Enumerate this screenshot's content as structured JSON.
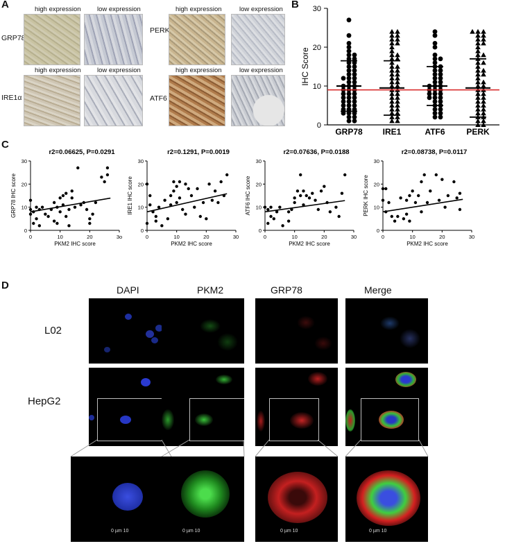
{
  "panelA": {
    "letter": "A",
    "high_label": "high expression",
    "low_label": "low expression",
    "rows_left": [
      "GRP78",
      "IRE1α"
    ],
    "rows_right": [
      "PERK",
      "ATF6"
    ]
  },
  "panelB": {
    "letter": "B",
    "ylabel": "IHC Score",
    "categories": [
      "GRP78",
      "IRE1",
      "ATF6",
      "PERK"
    ],
    "yticks": [
      "0",
      "10",
      "20",
      "30"
    ],
    "reference_line": 9,
    "colors": {
      "reference": "#d92b2b",
      "points": "#000000"
    }
  },
  "panelC": {
    "letter": "C",
    "xlabel": "PKM2 IHC score",
    "plots": [
      {
        "title": "r2=0.06625, P=0.0291",
        "ylabel": "GRP78 IHC score",
        "xticks": [
          "0",
          "10",
          "20",
          "3o"
        ],
        "yticks": [
          "0",
          "10",
          "20",
          "30"
        ]
      },
      {
        "title": "r2=0.1291, P=0.0019",
        "ylabel": "IRE1 IHC score",
        "xticks": [
          "0",
          "10",
          "20",
          "30"
        ],
        "yticks": [
          "0",
          "10",
          "20",
          "30"
        ]
      },
      {
        "title": "r2=0.07636, P=0.0188",
        "ylabel": "ATF6 IHC score",
        "xticks": [
          "0",
          "10",
          "20",
          "30"
        ],
        "yticks": [
          "0",
          "10",
          "20",
          "30"
        ]
      },
      {
        "title": "r2=0.08738, P=0.0117",
        "ylabel": "PERK IHC score",
        "xticks": [
          "0",
          "10",
          "20",
          "30"
        ],
        "yticks": [
          "0",
          "10",
          "20",
          "30"
        ]
      }
    ]
  },
  "panelD": {
    "letter": "D",
    "columns": [
      "DAPI",
      "PKM2",
      "GRP78",
      "Merge"
    ],
    "rows": [
      "L02",
      "HepG2"
    ],
    "scale_text": "0     µm     10",
    "channel_colors": {
      "DAPI": "#1c35c9",
      "PKM2": "#2fd12f",
      "GRP78": "#d42020"
    }
  },
  "chart_data": [
    {
      "type": "scatter",
      "title": "",
      "xlabel": "",
      "ylabel": "IHC Score",
      "ylim": [
        0,
        30
      ],
      "categories": [
        "GRP78",
        "IRE1",
        "ATF6",
        "PERK"
      ],
      "series": [
        {
          "name": "GRP78",
          "values": [
            27,
            23,
            21,
            20,
            19,
            18,
            18,
            17,
            17,
            16,
            16,
            15,
            15,
            14,
            14,
            13,
            13,
            12,
            12,
            12,
            11,
            11,
            10,
            10,
            10,
            9,
            9,
            9,
            8,
            8,
            8,
            7,
            7,
            7,
            6,
            6,
            6,
            5,
            5,
            5,
            4,
            4,
            4,
            3,
            3,
            3,
            2,
            2,
            1,
            1
          ],
          "mean": 10,
          "sd": 6.5
        },
        {
          "name": "IRE1",
          "values": [
            24,
            24,
            23,
            23,
            22,
            22,
            21,
            21,
            20,
            19,
            18,
            18,
            17,
            17,
            16,
            15,
            15,
            14,
            14,
            13,
            13,
            12,
            12,
            11,
            11,
            10,
            10,
            9,
            9,
            8,
            8,
            7,
            7,
            6,
            6,
            5,
            5,
            4,
            4,
            3,
            3,
            2,
            2,
            1,
            1
          ],
          "mean": 9.5,
          "sd": 7
        },
        {
          "name": "ATF6",
          "values": [
            24,
            23,
            21,
            20,
            18,
            17,
            17,
            16,
            15,
            15,
            14,
            14,
            13,
            13,
            12,
            12,
            11,
            11,
            10,
            10,
            10,
            9,
            9,
            9,
            8,
            8,
            8,
            7,
            7,
            7,
            6,
            6,
            5,
            5,
            4,
            4,
            3,
            3,
            2,
            2
          ],
          "mean": 10,
          "sd": 5
        },
        {
          "name": "PERK",
          "values": [
            24,
            24,
            24,
            23,
            23,
            22,
            22,
            21,
            21,
            20,
            19,
            18,
            18,
            17,
            16,
            16,
            15,
            14,
            14,
            13,
            13,
            12,
            11,
            11,
            10,
            10,
            9,
            9,
            8,
            8,
            7,
            7,
            6,
            6,
            5,
            5,
            4,
            4,
            3,
            3,
            2,
            2,
            1,
            1,
            0,
            0
          ],
          "mean": 9.5,
          "sd": 7.5
        }
      ],
      "reference_line": 9
    },
    {
      "type": "scatter",
      "title": "r2=0.06625, P=0.0291",
      "xlabel": "PKM2 IHC score",
      "ylabel": "GRP78 IHC score",
      "xlim": [
        0,
        30
      ],
      "ylim": [
        0,
        30
      ],
      "x": [
        0,
        0,
        0,
        1,
        1,
        2,
        2,
        3,
        3,
        4,
        5,
        6,
        7,
        8,
        8,
        9,
        9,
        10,
        10,
        11,
        11,
        12,
        12,
        13,
        13,
        14,
        14,
        15,
        16,
        17,
        18,
        19,
        20,
        20,
        21,
        22,
        24,
        25,
        26,
        26
      ],
      "y": [
        13,
        9,
        7,
        8,
        3,
        10,
        5,
        9,
        2,
        10,
        7,
        6,
        9,
        12,
        4,
        10,
        3,
        14,
        8,
        15,
        11,
        6,
        16,
        9,
        2,
        14,
        17,
        10,
        27,
        11,
        12,
        9,
        5,
        3,
        7,
        12,
        23,
        21,
        27,
        24
      ],
      "fit": {
        "slope": 0.22,
        "intercept": 8
      }
    },
    {
      "type": "scatter",
      "title": "r2=0.1291, P=0.0019",
      "xlabel": "PKM2 IHC score",
      "ylabel": "IRE1 IHC score",
      "xlim": [
        0,
        30
      ],
      "ylim": [
        0,
        30
      ],
      "x": [
        0,
        0,
        1,
        1,
        2,
        3,
        3,
        4,
        5,
        6,
        7,
        8,
        8,
        9,
        9,
        10,
        10,
        11,
        11,
        12,
        13,
        13,
        14,
        15,
        16,
        17,
        18,
        19,
        20,
        21,
        22,
        23,
        24,
        25,
        26,
        27
      ],
      "y": [
        3,
        20,
        15,
        11,
        8,
        4,
        6,
        10,
        2,
        13,
        5,
        15,
        11,
        17,
        21,
        19,
        12,
        21,
        14,
        9,
        7,
        20,
        18,
        15,
        10,
        18,
        6,
        12,
        5,
        20,
        13,
        17,
        12,
        21,
        15,
        24
      ],
      "fit": {
        "slope": 0.29,
        "intercept": 8
      }
    },
    {
      "type": "scatter",
      "title": "r2=0.07636, P=0.0188",
      "xlabel": "PKM2 IHC score",
      "ylabel": "ATF6 IHC score",
      "xlim": [
        0,
        30
      ],
      "ylim": [
        0,
        30
      ],
      "x": [
        0,
        1,
        1,
        2,
        2,
        3,
        4,
        5,
        6,
        8,
        8,
        9,
        10,
        10,
        11,
        12,
        12,
        13,
        13,
        14,
        15,
        16,
        17,
        18,
        19,
        20,
        21,
        22,
        24,
        25,
        26,
        27
      ],
      "y": [
        10,
        9,
        3,
        10,
        6,
        5,
        8,
        10,
        2,
        8,
        4,
        9,
        14,
        12,
        17,
        15,
        24,
        11,
        17,
        15,
        14,
        16,
        13,
        9,
        17,
        19,
        12,
        8,
        10,
        6,
        16,
        24
      ],
      "fit": {
        "slope": 0.18,
        "intercept": 8
      }
    },
    {
      "type": "scatter",
      "title": "r2=0.08738, P=0.0117",
      "xlabel": "PKM2 IHC score",
      "ylabel": "PERK IHC score",
      "xlim": [
        0,
        30
      ],
      "ylim": [
        0,
        30
      ],
      "x": [
        0,
        0,
        1,
        1,
        2,
        3,
        4,
        5,
        6,
        7,
        8,
        8,
        9,
        9,
        10,
        11,
        12,
        13,
        13,
        14,
        15,
        16,
        18,
        19,
        20,
        21,
        22,
        24,
        25,
        26,
        26
      ],
      "y": [
        18,
        13,
        8,
        18,
        12,
        6,
        4,
        6,
        14,
        5,
        13,
        7,
        15,
        4,
        17,
        12,
        15,
        21,
        8,
        24,
        12,
        17,
        24,
        13,
        22,
        10,
        15,
        21,
        14,
        9,
        16
      ],
      "fit": {
        "slope": 0.2,
        "intercept": 8
      }
    }
  ]
}
